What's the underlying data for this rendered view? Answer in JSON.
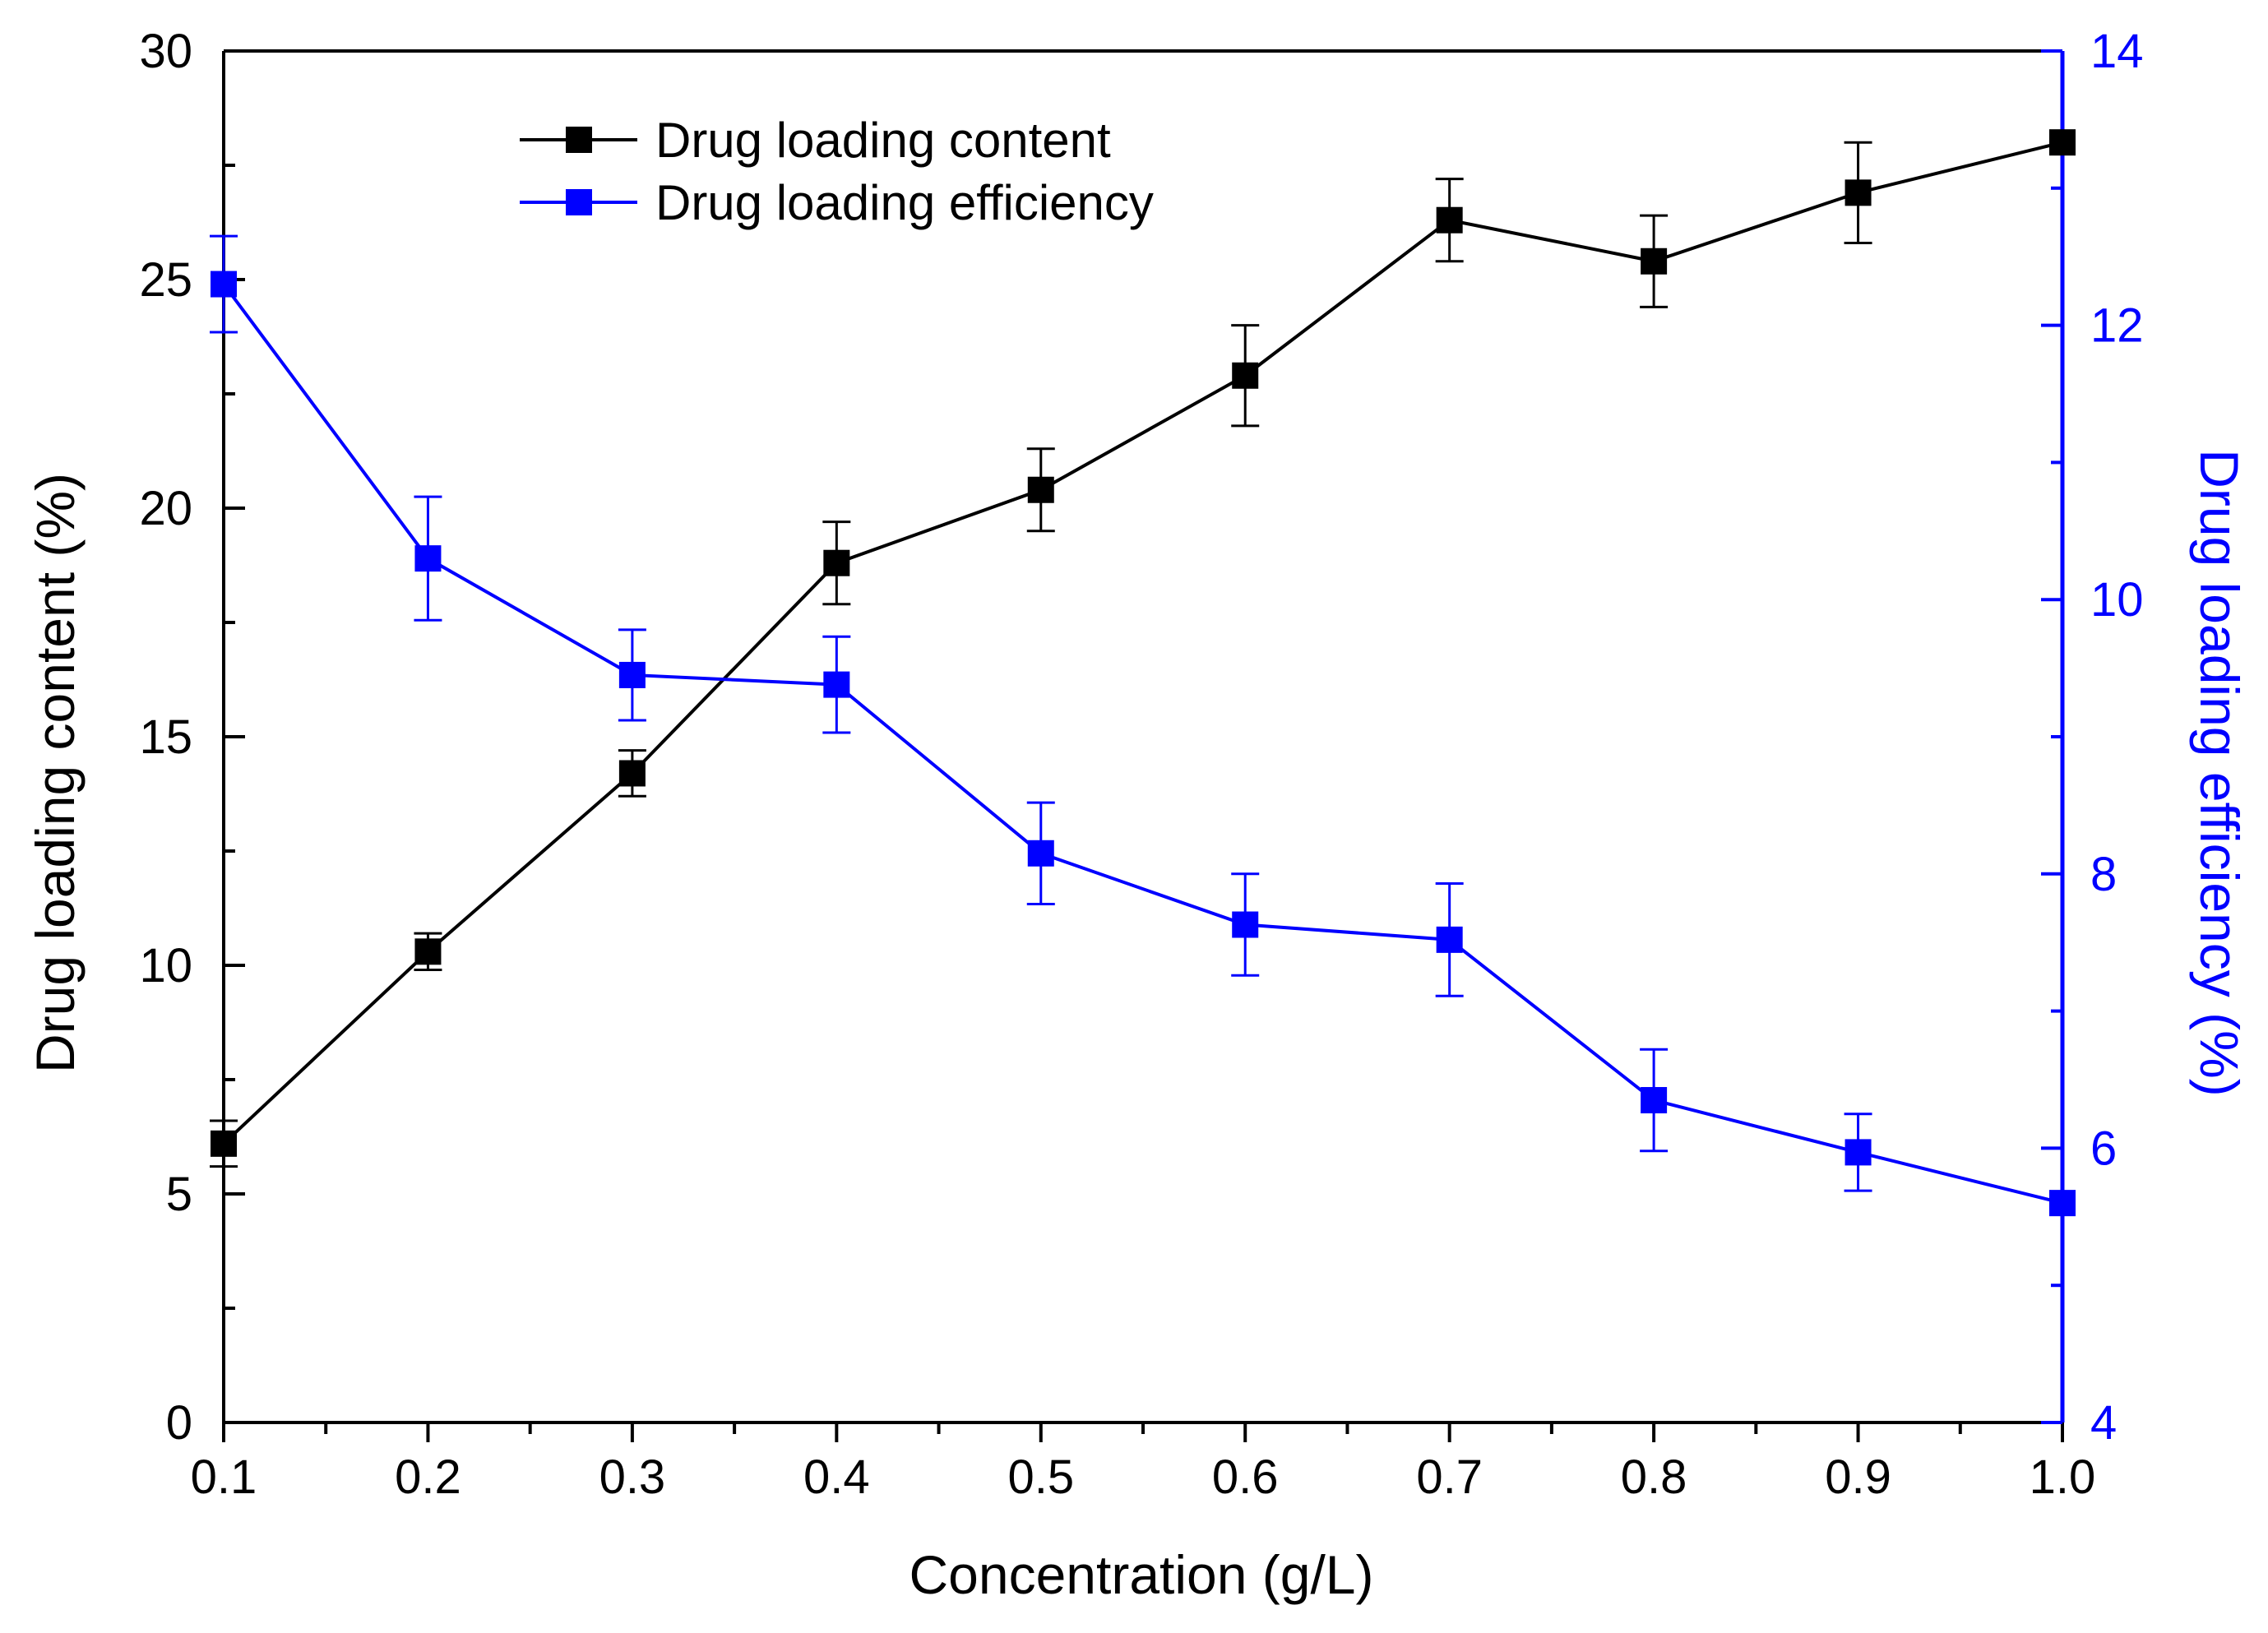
{
  "chart_data": {
    "type": "line",
    "title": "",
    "xlabel": "Concentration (g/L)",
    "ylabel": "Drug loading content (%)",
    "y2label": "Drug loading efficiency (%)",
    "x": [
      0.1,
      0.2,
      0.3,
      0.4,
      0.5,
      0.6,
      0.7,
      0.8,
      0.9,
      1.0
    ],
    "x_tick_labels": [
      "0.1",
      "0.2",
      "0.3",
      "0.4",
      "0.5",
      "0.6",
      "0.7",
      "0.8",
      "0.9",
      "1.0"
    ],
    "xlim": [
      0.1,
      1.0
    ],
    "ylim": [
      0,
      30
    ],
    "y_ticks": [
      0,
      5,
      10,
      15,
      20,
      25,
      30
    ],
    "y_tick_labels": [
      "0",
      "5",
      "10",
      "15",
      "20",
      "25",
      "30"
    ],
    "y2lim": [
      4,
      14
    ],
    "y2_ticks": [
      4,
      6,
      8,
      10,
      12,
      14
    ],
    "y2_tick_labels": [
      "4",
      "6",
      "8",
      "10",
      "12",
      "14"
    ],
    "legend_position": "top-center",
    "grid": false,
    "series": [
      {
        "name": "Drug loading content",
        "axis": "left",
        "color": "#000000",
        "values": [
          6.1,
          10.3,
          14.2,
          18.8,
          20.4,
          22.9,
          26.3,
          25.4,
          26.9,
          28.0
        ],
        "errors": [
          0.5,
          0.4,
          0.5,
          0.9,
          0.9,
          1.1,
          0.9,
          1.0,
          1.1,
          0.0
        ]
      },
      {
        "name": "Drug loading efficiency",
        "axis": "right",
        "color": "#0000ff",
        "values": [
          12.3,
          10.3,
          9.45,
          9.38,
          8.15,
          7.63,
          7.52,
          6.35,
          5.97,
          5.6
        ],
        "errors": [
          0.35,
          0.45,
          0.33,
          0.35,
          0.37,
          0.37,
          0.41,
          0.37,
          0.28,
          0.0
        ]
      }
    ]
  }
}
